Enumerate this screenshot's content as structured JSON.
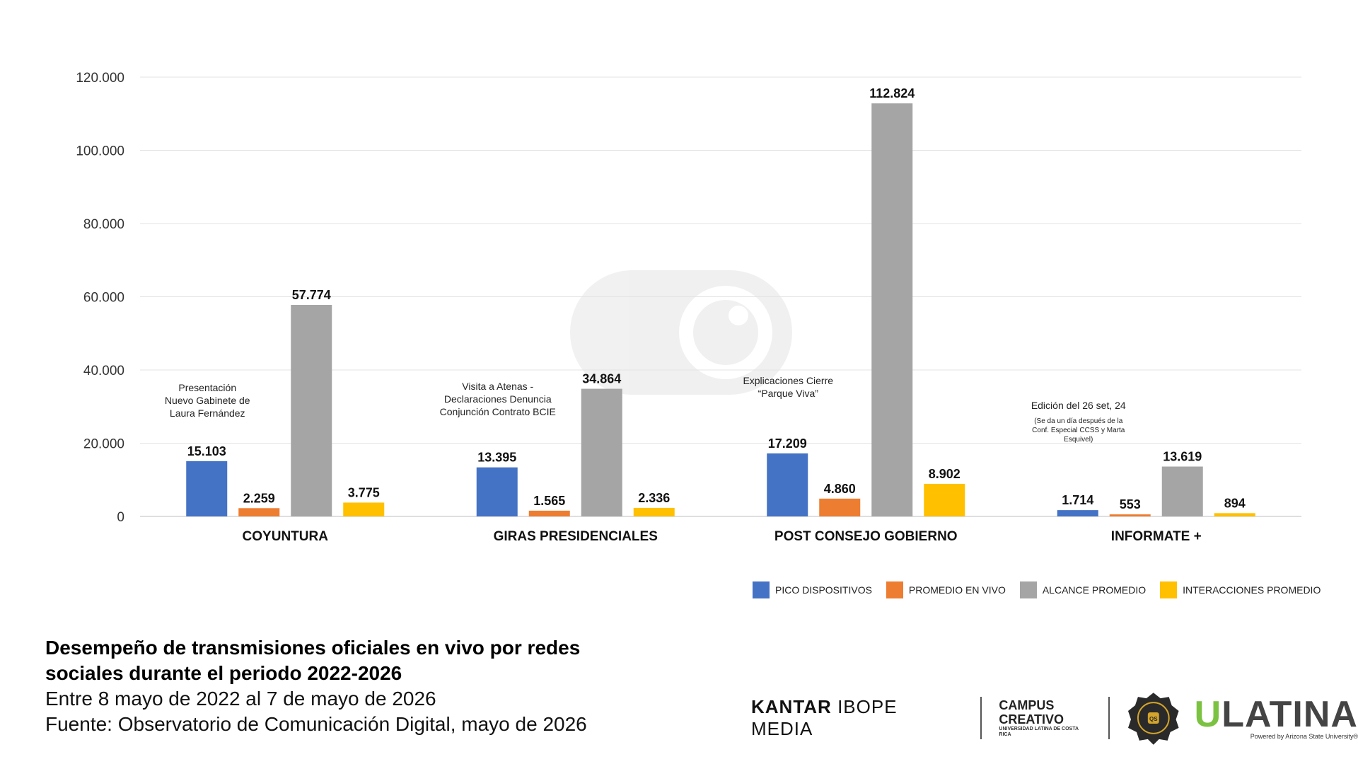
{
  "chart_data": {
    "type": "bar",
    "title": "Desempeño de transmisiones oficiales en vivo por redes sociales durante el periodo 2022-2026",
    "categories": [
      "COYUNTURA",
      "GIRAS PRESIDENCIALES",
      "POST CONSEJO GOBIERNO",
      "INFORMATE +"
    ],
    "series": [
      {
        "name": "PICO DISPOSITIVOS",
        "color": "#4472c4",
        "values": [
          15103,
          13395,
          17209,
          1714
        ],
        "labels": [
          "15.103",
          "13.395",
          "17.209",
          "1.714"
        ]
      },
      {
        "name": "PROMEDIO EN VIVO",
        "color": "#ed7d31",
        "values": [
          2259,
          1565,
          4860,
          553
        ],
        "labels": [
          "2.259",
          "1.565",
          "4.860",
          "553"
        ]
      },
      {
        "name": "ALCANCE PROMEDIO",
        "color": "#a5a5a5",
        "values": [
          57774,
          34864,
          112824,
          13619
        ],
        "labels": [
          "57.774",
          "34.864",
          "112.824",
          "13.619"
        ]
      },
      {
        "name": "INTERACCIONES PROMEDIO",
        "color": "#ffc000",
        "values": [
          3775,
          2336,
          8902,
          894
        ],
        "labels": [
          "3.775",
          "2.336",
          "8.902",
          "894"
        ]
      }
    ],
    "ylim": [
      0,
      120000
    ],
    "yticks": [
      0,
      20000,
      40000,
      60000,
      80000,
      100000,
      120000
    ],
    "ytick_labels": [
      "0",
      "20.000",
      "40.000",
      "60.000",
      "80.000",
      "100.000",
      "120.000"
    ],
    "grid": true,
    "legend_position": "bottom-right",
    "annotations": [
      {
        "category": 0,
        "lines": [
          "Presentación",
          "Nuevo Gabinete de",
          "Laura Fernández"
        ],
        "small_lines": []
      },
      {
        "category": 1,
        "lines": [
          "Visita a Atenas -",
          "Declaraciones Denuncia",
          "Conjunción Contrato BCIE"
        ],
        "small_lines": []
      },
      {
        "category": 2,
        "lines": [
          "Explicaciones Cierre",
          "“Parque Viva”"
        ],
        "small_lines": []
      },
      {
        "category": 3,
        "lines": [
          "Edición del 26 set, 24"
        ],
        "small_lines": [
          "(Se da un día después de la",
          "Conf. Especial CCSS y Marta",
          "Esquivel)"
        ]
      }
    ]
  },
  "caption": {
    "title_line1": "Desempeño de transmisiones oficiales en vivo por redes",
    "title_line2": "sociales durante el periodo 2022-2026",
    "period": "Entre 8 mayo de 2022 al 7 de mayo de 2026",
    "source": "Fuente: Observatorio de Comunicación Digital, mayo de 2026"
  },
  "legend": [
    {
      "label": "PICO DISPOSITIVOS",
      "color": "#4472c4"
    },
    {
      "label": "PROMEDIO EN VIVO",
      "color": "#ed7d31"
    },
    {
      "label": "ALCANCE PROMEDIO",
      "color": "#a5a5a5"
    },
    {
      "label": "INTERACCIONES PROMEDIO",
      "color": "#ffc000"
    }
  ],
  "logos": {
    "kantar_bold": "KANTAR",
    "kantar_rest": "IBOPE MEDIA",
    "campus_line1": "CAMPUS",
    "campus_line2": "CREATIVO",
    "campus_line3": "UNIVERSIDAD LATINA DE COSTA RICA",
    "badge_text": "QS",
    "ulatina_u": "U",
    "ulatina_rest": "LATINA",
    "ulatina_powered": "Powered by Arizona State University®"
  }
}
